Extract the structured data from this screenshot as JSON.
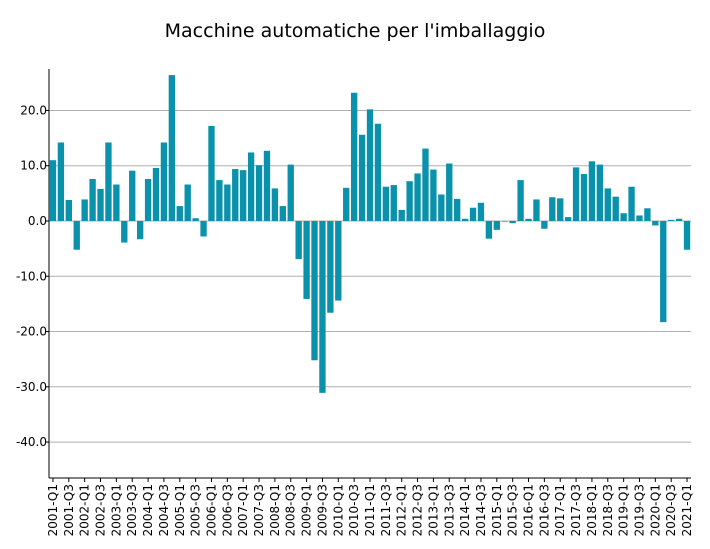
{
  "chart_data": {
    "type": "bar",
    "title": "Macchine automatiche per l'imballaggio",
    "xlabel": "",
    "ylabel": "",
    "ylim": [
      -46.5,
      27.5
    ],
    "yticks": [
      -40,
      -30,
      -20,
      -10,
      0,
      10,
      20
    ],
    "ytick_labels": [
      "-40.0",
      "-30.0",
      "-20.0",
      "-10.0",
      "0.0",
      "10.0",
      "20.0"
    ],
    "grid": true,
    "bar_color": "#0a91ab",
    "grid_color": "#b0b0b0",
    "x_tick_labels": [
      "2001-Q1",
      "2001-Q3",
      "2002-Q1",
      "2002-Q3",
      "2003-Q1",
      "2003-Q3",
      "2004-Q1",
      "2004-Q3",
      "2005-Q1",
      "2005-Q3",
      "2006-Q1",
      "2006-Q3",
      "2007-Q1",
      "2007-Q3",
      "2008-Q1",
      "2008-Q3",
      "2009-Q1",
      "2009-Q3",
      "2010-Q1",
      "2010-Q3",
      "2011-Q1",
      "2011-Q3",
      "2012-Q1",
      "2012-Q3",
      "2013-Q1",
      "2013-Q3",
      "2014-Q1",
      "2014-Q3",
      "2015-Q1",
      "2015-Q3",
      "2016-Q1",
      "2016-Q3",
      "2017-Q1",
      "2017-Q3",
      "2018-Q1",
      "2018-Q3",
      "2019-Q1",
      "2019-Q3",
      "2020-Q1",
      "2020-Q3",
      "2021-Q1"
    ],
    "categories": [
      "2001-Q1",
      "2001-Q2",
      "2001-Q3",
      "2001-Q4",
      "2002-Q1",
      "2002-Q2",
      "2002-Q3",
      "2002-Q4",
      "2003-Q1",
      "2003-Q2",
      "2003-Q3",
      "2003-Q4",
      "2004-Q1",
      "2004-Q2",
      "2004-Q3",
      "2004-Q4",
      "2005-Q1",
      "2005-Q2",
      "2005-Q3",
      "2005-Q4",
      "2006-Q1",
      "2006-Q2",
      "2006-Q3",
      "2006-Q4",
      "2007-Q1",
      "2007-Q2",
      "2007-Q3",
      "2007-Q4",
      "2008-Q1",
      "2008-Q2",
      "2008-Q3",
      "2008-Q4",
      "2009-Q1",
      "2009-Q2",
      "2009-Q3",
      "2009-Q4",
      "2010-Q1",
      "2010-Q2",
      "2010-Q3",
      "2010-Q4",
      "2011-Q1",
      "2011-Q2",
      "2011-Q3",
      "2011-Q4",
      "2012-Q1",
      "2012-Q2",
      "2012-Q3",
      "2012-Q4",
      "2013-Q1",
      "2013-Q2",
      "2013-Q3",
      "2013-Q4",
      "2014-Q1",
      "2014-Q2",
      "2014-Q3",
      "2014-Q4",
      "2015-Q1",
      "2015-Q2",
      "2015-Q3",
      "2015-Q4",
      "2016-Q1",
      "2016-Q2",
      "2016-Q3",
      "2016-Q4",
      "2017-Q1",
      "2017-Q2",
      "2017-Q3",
      "2017-Q4",
      "2018-Q1",
      "2018-Q2",
      "2018-Q3",
      "2018-Q4",
      "2019-Q1",
      "2019-Q2",
      "2019-Q3",
      "2019-Q4",
      "2020-Q1",
      "2020-Q2",
      "2020-Q3",
      "2020-Q4",
      "2021-Q1"
    ],
    "values": [
      11.0,
      14.2,
      3.8,
      -5.2,
      3.9,
      7.6,
      5.8,
      14.2,
      6.6,
      -3.9,
      9.1,
      -3.3,
      7.6,
      9.6,
      14.2,
      26.4,
      2.7,
      6.6,
      0.5,
      -2.8,
      17.2,
      7.4,
      6.6,
      9.4,
      9.2,
      12.4,
      10.1,
      12.7,
      5.9,
      2.7,
      10.2,
      -6.9,
      -14.1,
      -25.2,
      -31.1,
      -16.6,
      -14.4,
      6.0,
      23.2,
      15.6,
      20.2,
      17.6,
      6.2,
      6.5,
      2.0,
      7.2,
      8.6,
      13.1,
      9.3,
      4.8,
      10.4,
      4.0,
      0.4,
      2.4,
      3.3,
      -3.2,
      -1.6,
      -0.1,
      -0.4,
      7.4,
      0.4,
      3.9,
      -1.4,
      4.3,
      4.1,
      0.7,
      9.7,
      8.5,
      10.8,
      10.2,
      5.9,
      4.4,
      1.4,
      6.2,
      1.0,
      2.3,
      -0.8,
      -18.3,
      0.2,
      0.4,
      -5.2
    ]
  }
}
